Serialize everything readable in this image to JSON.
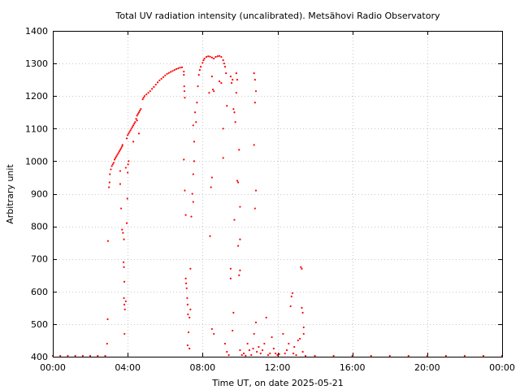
{
  "chart_data": {
    "type": "scatter",
    "title": "Total UV radiation intensity (uncalibrated). Metsähovi Radio Observatory",
    "xlabel": "Time UT, on date 2025-05-21",
    "ylabel": "Arbitrary unit",
    "xlim": [
      0,
      24
    ],
    "ylim": [
      400,
      1400
    ],
    "x_ticks": [
      {
        "value": 0,
        "label": "00:00"
      },
      {
        "value": 4,
        "label": "04:00"
      },
      {
        "value": 8,
        "label": "08:00"
      },
      {
        "value": 12,
        "label": "12:00"
      },
      {
        "value": 16,
        "label": "16:00"
      },
      {
        "value": 20,
        "label": "20:00"
      },
      {
        "value": 24,
        "label": "00:00"
      }
    ],
    "y_ticks": [
      400,
      500,
      600,
      700,
      800,
      900,
      1000,
      1100,
      1200,
      1300,
      1400
    ],
    "grid": true,
    "marker_color": "#ff0000",
    "series": [
      {
        "points": [
          [
            0.0,
            402
          ],
          [
            0.4,
            401
          ],
          [
            0.8,
            402
          ],
          [
            1.2,
            401
          ],
          [
            1.6,
            402
          ],
          [
            2.0,
            401
          ],
          [
            2.4,
            402
          ],
          [
            2.8,
            402
          ],
          [
            2.9,
            440
          ],
          [
            2.93,
            515
          ],
          [
            2.95,
            755
          ],
          [
            3.0,
            920
          ],
          [
            3.03,
            935
          ],
          [
            3.05,
            960
          ],
          [
            3.1,
            975
          ],
          [
            3.15,
            985
          ],
          [
            3.2,
            990
          ],
          [
            3.25,
            995
          ],
          [
            3.3,
            1005
          ],
          [
            3.35,
            1010
          ],
          [
            3.4,
            1015
          ],
          [
            3.45,
            1020
          ],
          [
            3.5,
            1025
          ],
          [
            3.55,
            1030
          ],
          [
            3.6,
            1035
          ],
          [
            3.65,
            1040
          ],
          [
            3.7,
            1045
          ],
          [
            3.72,
            1050
          ],
          [
            3.6,
            970
          ],
          [
            3.6,
            930
          ],
          [
            3.65,
            855
          ],
          [
            3.7,
            790
          ],
          [
            3.75,
            780
          ],
          [
            3.8,
            760
          ],
          [
            3.78,
            690
          ],
          [
            3.8,
            675
          ],
          [
            3.82,
            630
          ],
          [
            3.8,
            580
          ],
          [
            3.82,
            560
          ],
          [
            3.85,
            545
          ],
          [
            3.83,
            470
          ],
          [
            3.9,
            570
          ],
          [
            3.95,
            810
          ],
          [
            3.98,
            885
          ],
          [
            4.0,
            965
          ],
          [
            4.02,
            990
          ],
          [
            3.9,
            980
          ],
          [
            4.05,
            1000
          ],
          [
            3.95,
            1070
          ],
          [
            4.0,
            1080
          ],
          [
            4.05,
            1085
          ],
          [
            4.1,
            1090
          ],
          [
            4.15,
            1095
          ],
          [
            4.2,
            1100
          ],
          [
            4.25,
            1105
          ],
          [
            4.3,
            1110
          ],
          [
            4.35,
            1115
          ],
          [
            4.4,
            1120
          ],
          [
            4.45,
            1130
          ],
          [
            4.5,
            1140
          ],
          [
            4.55,
            1145
          ],
          [
            4.6,
            1150
          ],
          [
            4.65,
            1155
          ],
          [
            4.7,
            1160
          ],
          [
            4.3,
            1060
          ],
          [
            4.6,
            1085
          ],
          [
            4.5,
            1125
          ],
          [
            4.8,
            1190
          ],
          [
            4.85,
            1195
          ],
          [
            4.9,
            1200
          ],
          [
            5.0,
            1205
          ],
          [
            5.1,
            1210
          ],
          [
            5.2,
            1215
          ],
          [
            5.3,
            1222
          ],
          [
            5.4,
            1228
          ],
          [
            5.5,
            1235
          ],
          [
            5.6,
            1242
          ],
          [
            5.7,
            1248
          ],
          [
            5.8,
            1253
          ],
          [
            5.9,
            1258
          ],
          [
            6.0,
            1263
          ],
          [
            6.1,
            1268
          ],
          [
            6.2,
            1271
          ],
          [
            6.3,
            1274
          ],
          [
            6.4,
            1277
          ],
          [
            6.5,
            1280
          ],
          [
            6.6,
            1283
          ],
          [
            6.7,
            1285
          ],
          [
            6.8,
            1287
          ],
          [
            6.9,
            1288
          ],
          [
            7.0,
            1275
          ],
          [
            7.0,
            1265
          ],
          [
            7.02,
            1230
          ],
          [
            7.03,
            1215
          ],
          [
            7.05,
            1195
          ],
          [
            7.0,
            1005
          ],
          [
            7.05,
            910
          ],
          [
            7.1,
            835
          ],
          [
            7.1,
            640
          ],
          [
            7.12,
            625
          ],
          [
            7.15,
            610
          ],
          [
            7.18,
            580
          ],
          [
            7.2,
            560
          ],
          [
            7.22,
            530
          ],
          [
            7.25,
            475
          ],
          [
            7.2,
            435
          ],
          [
            7.3,
            425
          ],
          [
            7.3,
            520
          ],
          [
            7.35,
            545
          ],
          [
            7.35,
            670
          ],
          [
            7.4,
            830
          ],
          [
            7.45,
            900
          ],
          [
            7.5,
            875
          ],
          [
            7.5,
            960
          ],
          [
            7.55,
            1000
          ],
          [
            7.5,
            1110
          ],
          [
            7.55,
            1060
          ],
          [
            7.6,
            1150
          ],
          [
            7.65,
            1120
          ],
          [
            7.7,
            1180
          ],
          [
            7.75,
            1230
          ],
          [
            7.8,
            1265
          ],
          [
            7.85,
            1280
          ],
          [
            7.9,
            1290
          ],
          [
            8.0,
            1302
          ],
          [
            8.05,
            1310
          ],
          [
            8.1,
            1315
          ],
          [
            8.2,
            1320
          ],
          [
            8.3,
            1322
          ],
          [
            8.4,
            1321
          ],
          [
            8.5,
            1318
          ],
          [
            8.6,
            1315
          ],
          [
            8.7,
            1320
          ],
          [
            8.8,
            1322
          ],
          [
            8.9,
            1323
          ],
          [
            9.0,
            1320
          ],
          [
            9.1,
            1310
          ],
          [
            9.15,
            1300
          ],
          [
            9.2,
            1290
          ],
          [
            9.25,
            1270
          ],
          [
            8.35,
            1210
          ],
          [
            8.5,
            1260
          ],
          [
            8.55,
            1220
          ],
          [
            8.6,
            1215
          ],
          [
            8.45,
            920
          ],
          [
            8.5,
            950
          ],
          [
            8.4,
            770
          ],
          [
            8.5,
            485
          ],
          [
            8.6,
            470
          ],
          [
            8.9,
            1245
          ],
          [
            9.0,
            1240
          ],
          [
            9.1,
            1100
          ],
          [
            9.1,
            1010
          ],
          [
            9.2,
            440
          ],
          [
            9.3,
            415
          ],
          [
            9.4,
            405
          ],
          [
            9.3,
            1170
          ],
          [
            9.5,
            1260
          ],
          [
            9.55,
            1240
          ],
          [
            9.6,
            1250
          ],
          [
            9.65,
            1160
          ],
          [
            9.7,
            1150
          ],
          [
            9.75,
            1120
          ],
          [
            9.8,
            1270
          ],
          [
            9.85,
            1250
          ],
          [
            9.8,
            1210
          ],
          [
            9.85,
            940
          ],
          [
            9.9,
            935
          ],
          [
            9.95,
            1035
          ],
          [
            10.0,
            760
          ],
          [
            10.0,
            860
          ],
          [
            9.9,
            740
          ],
          [
            10.0,
            665
          ],
          [
            9.95,
            650
          ],
          [
            9.7,
            820
          ],
          [
            9.5,
            670
          ],
          [
            9.5,
            640
          ],
          [
            9.65,
            535
          ],
          [
            9.6,
            480
          ],
          [
            10.0,
            420
          ],
          [
            10.1,
            405
          ],
          [
            10.2,
            410
          ],
          [
            10.3,
            403
          ],
          [
            10.4,
            440
          ],
          [
            10.5,
            420
          ],
          [
            10.6,
            405
          ],
          [
            10.7,
            425
          ],
          [
            10.75,
            1270
          ],
          [
            10.8,
            1250
          ],
          [
            10.85,
            1215
          ],
          [
            10.8,
            1180
          ],
          [
            10.75,
            1050
          ],
          [
            10.85,
            910
          ],
          [
            10.8,
            855
          ],
          [
            10.75,
            470
          ],
          [
            10.85,
            505
          ],
          [
            10.9,
            415
          ],
          [
            11.0,
            430
          ],
          [
            11.1,
            410
          ],
          [
            11.2,
            420
          ],
          [
            11.3,
            440
          ],
          [
            11.4,
            520
          ],
          [
            11.5,
            405
          ],
          [
            11.6,
            410
          ],
          [
            11.7,
            460
          ],
          [
            11.8,
            425
          ],
          [
            11.9,
            410
          ],
          [
            12.0,
            405
          ],
          [
            12.1,
            408
          ],
          [
            12.3,
            470
          ],
          [
            12.4,
            410
          ],
          [
            12.5,
            420
          ],
          [
            12.6,
            440
          ],
          [
            12.7,
            555
          ],
          [
            12.75,
            585
          ],
          [
            12.8,
            595
          ],
          [
            12.85,
            410
          ],
          [
            12.9,
            430
          ],
          [
            13.0,
            405
          ],
          [
            13.1,
            450
          ],
          [
            13.2,
            455
          ],
          [
            13.25,
            675
          ],
          [
            13.3,
            670
          ],
          [
            13.3,
            550
          ],
          [
            13.35,
            535
          ],
          [
            13.4,
            490
          ],
          [
            13.4,
            470
          ],
          [
            13.35,
            415
          ],
          [
            13.5,
            402
          ],
          [
            14.0,
            401
          ],
          [
            15.0,
            402
          ],
          [
            16.0,
            401
          ],
          [
            17.0,
            402
          ],
          [
            18.0,
            401
          ],
          [
            19.0,
            402
          ],
          [
            20.0,
            401
          ],
          [
            21.0,
            402
          ],
          [
            22.0,
            401
          ],
          [
            23.0,
            402
          ],
          [
            24.0,
            401
          ]
        ]
      }
    ]
  }
}
